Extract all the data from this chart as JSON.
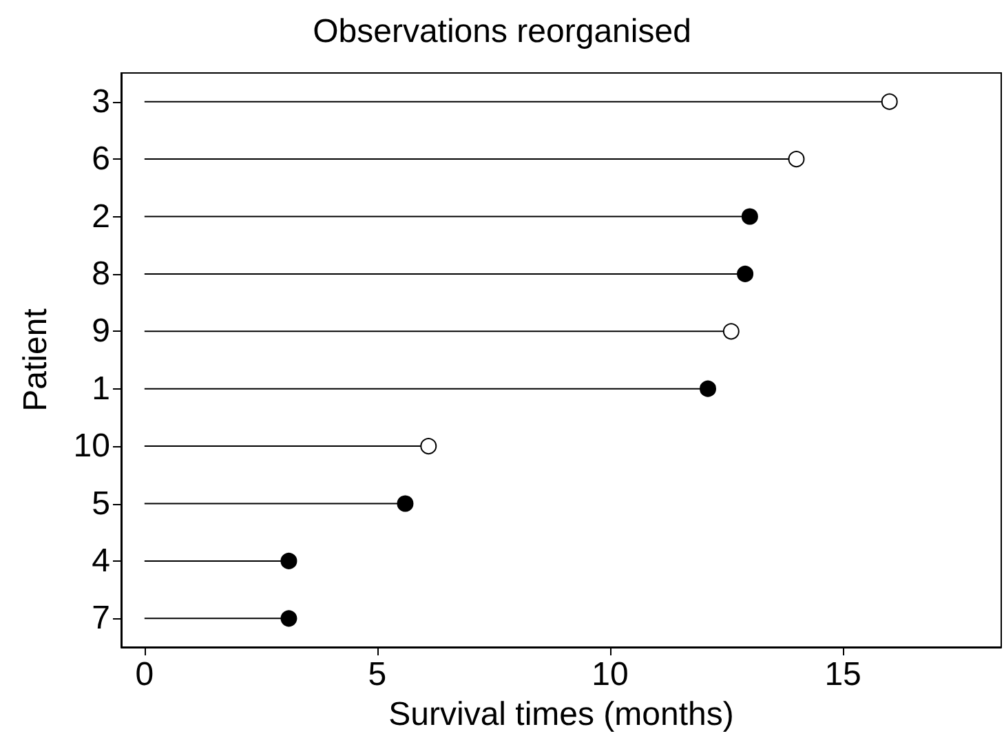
{
  "chart_data": {
    "type": "lollipop",
    "orientation": "horizontal",
    "title": "Observations reorganised",
    "xlabel": "Survival times (months)",
    "ylabel": "Patient",
    "categories": [
      "3",
      "6",
      "2",
      "8",
      "9",
      "1",
      "10",
      "5",
      "4",
      "7"
    ],
    "series": [
      {
        "color": "#000000",
        "values": [
          null,
          null,
          13,
          12.9,
          null,
          12.1,
          null,
          5.6,
          3.1,
          3.1
        ]
      },
      {
        "color": "#ffffff",
        "values": [
          16,
          14,
          null,
          null,
          12.6,
          null,
          6.1,
          null,
          null,
          null
        ]
      }
    ],
    "xlim": [
      -0.5,
      18.4
    ],
    "xticks": [
      0,
      5,
      10,
      15
    ],
    "grid": false,
    "marker": "circle"
  }
}
